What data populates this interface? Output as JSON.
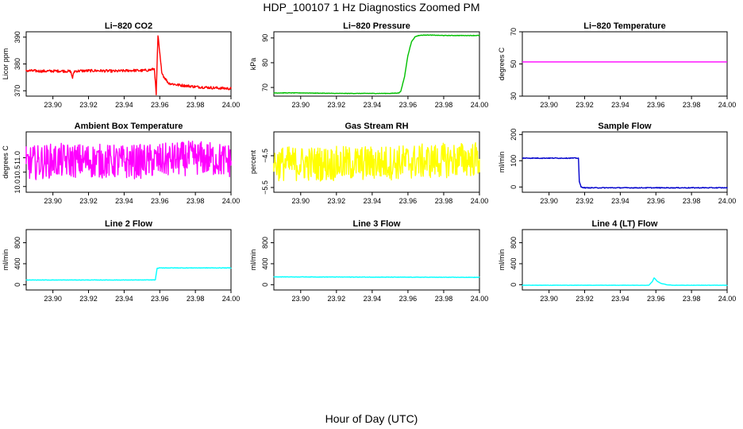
{
  "title": "HDP_100107  1 Hz Diagnostics Zoomed PM",
  "x_axis_title": "Hour of Day (UTC)",
  "chart_data": [
    {
      "type": "line",
      "title": "Li−820 CO2",
      "ylabel": "Licor ppm",
      "color": "#ff0000",
      "xlim": [
        23.885,
        24.0
      ],
      "ylim": [
        368,
        392
      ],
      "xticks": [
        "23.90",
        "23.92",
        "23.94",
        "23.96",
        "23.98",
        "24.00"
      ],
      "yticks": [
        "370",
        "380",
        "390"
      ],
      "series": [
        {
          "x": [
            23.885,
            23.895,
            23.905,
            23.91,
            23.911,
            23.912,
            23.915,
            23.925,
            23.935,
            23.945,
            23.95,
            23.955,
            23.957,
            23.958,
            23.959,
            23.96,
            23.961,
            23.962,
            23.965,
            23.97,
            23.98,
            23.99,
            24.0
          ],
          "y": [
            377.5,
            377.3,
            377.4,
            377.2,
            374.8,
            377.3,
            377.4,
            377.5,
            377.3,
            377.6,
            377.5,
            377.8,
            378.2,
            368.5,
            390.5,
            384.0,
            377.5,
            375.5,
            372.8,
            372.2,
            371.5,
            371.1,
            370.8
          ],
          "noise": 0.5
        }
      ]
    },
    {
      "type": "line",
      "title": "Li−820 Pressure",
      "ylabel": "kPa",
      "color": "#00c000",
      "xlim": [
        23.885,
        24.0
      ],
      "ylim": [
        66.5,
        92.5
      ],
      "xticks": [
        "23.90",
        "23.92",
        "23.94",
        "23.96",
        "23.98",
        "24.00"
      ],
      "yticks": [
        "70",
        "80",
        "90"
      ],
      "series": [
        {
          "x": [
            23.885,
            23.9,
            23.92,
            23.94,
            23.95,
            23.955,
            23.956,
            23.958,
            23.96,
            23.962,
            23.964,
            23.966,
            23.97,
            23.98,
            23.99,
            24.0
          ],
          "y": [
            67.8,
            67.8,
            67.6,
            67.6,
            67.6,
            67.8,
            68.5,
            74.0,
            83.0,
            88.5,
            90.5,
            91.0,
            91.2,
            91.0,
            91.0,
            91.0
          ],
          "noise": 0.1
        }
      ]
    },
    {
      "type": "line",
      "title": "Li−820 Temperature",
      "ylabel": "degrees C",
      "color": "#ff00ff",
      "xlim": [
        23.885,
        24.0
      ],
      "ylim": [
        30,
        70
      ],
      "xticks": [
        "23.90",
        "23.92",
        "23.94",
        "23.96",
        "23.98",
        "24.00"
      ],
      "yticks": [
        "30",
        "50",
        "70"
      ],
      "series": [
        {
          "x": [
            23.885,
            24.0
          ],
          "y": [
            51.3,
            51.3
          ],
          "noise": 0
        }
      ]
    },
    {
      "type": "line",
      "title": "Ambient Box Temperature",
      "ylabel": "degrees C",
      "color": "#ff00ff",
      "xlim": [
        23.885,
        24.0
      ],
      "ylim": [
        9.8,
        11.9
      ],
      "xticks": [
        "23.90",
        "23.92",
        "23.94",
        "23.96",
        "23.98",
        "24.00"
      ],
      "yticks": [
        "10.0",
        "10.5",
        "11.0"
      ],
      "series": [
        {
          "x": [
            23.885,
            23.9,
            23.92,
            23.94,
            23.96,
            23.98,
            24.0
          ],
          "y": [
            10.8,
            10.9,
            10.9,
            10.85,
            10.9,
            11.0,
            10.9
          ],
          "noise": 0.6
        }
      ]
    },
    {
      "type": "line",
      "title": "Gas Stream RH",
      "ylabel": "percent",
      "color": "#ffff00",
      "xlim": [
        23.885,
        24.0
      ],
      "ylim": [
        -5.65,
        -3.75
      ],
      "xticks": [
        "23.90",
        "23.92",
        "23.94",
        "23.96",
        "23.98",
        "24.00"
      ],
      "yticks": [
        "−5.5",
        "−4.5"
      ],
      "series": [
        {
          "x": [
            23.885,
            23.92,
            23.95,
            23.98,
            24.0
          ],
          "y": [
            -4.75,
            -4.75,
            -4.72,
            -4.65,
            -4.6
          ],
          "noise": 0.55
        }
      ]
    },
    {
      "type": "line",
      "title": "Sample Flow",
      "ylabel": "ml/min",
      "color": "#0000cc",
      "xlim": [
        23.885,
        24.0
      ],
      "ylim": [
        -20,
        210
      ],
      "xticks": [
        "23.90",
        "23.92",
        "23.94",
        "23.96",
        "23.98",
        "24.00"
      ],
      "yticks": [
        "0",
        "100",
        "200"
      ],
      "series": [
        {
          "x": [
            23.885,
            23.9,
            23.91,
            23.9165,
            23.917,
            23.918,
            23.92,
            23.94,
            23.96,
            23.98,
            24.0
          ],
          "y": [
            110,
            110,
            110,
            110,
            20,
            0,
            -3,
            -3,
            -3,
            -3,
            -3
          ],
          "noise": 1.5
        }
      ]
    },
    {
      "type": "line",
      "title": "Line 2 Flow",
      "ylabel": "ml/min",
      "color": "#00ffff",
      "xlim": [
        23.885,
        24.0
      ],
      "ylim": [
        -100,
        1050
      ],
      "xticks": [
        "23.90",
        "23.92",
        "23.94",
        "23.96",
        "23.98",
        "24.00"
      ],
      "yticks": [
        "0",
        "400",
        "800"
      ],
      "series": [
        {
          "x": [
            23.885,
            23.92,
            23.95,
            23.9575,
            23.9585,
            23.96,
            23.98,
            24.0
          ],
          "y": [
            90,
            90,
            90,
            92,
            310,
            320,
            320,
            320
          ],
          "noise": 4
        }
      ]
    },
    {
      "type": "line",
      "title": "Line 3 Flow",
      "ylabel": "ml/min",
      "color": "#00ffff",
      "xlim": [
        23.885,
        24.0
      ],
      "ylim": [
        -100,
        1050
      ],
      "xticks": [
        "23.90",
        "23.92",
        "23.94",
        "23.96",
        "23.98",
        "24.00"
      ],
      "yticks": [
        "0",
        "400",
        "800"
      ],
      "series": [
        {
          "x": [
            23.885,
            23.94,
            24.0
          ],
          "y": [
            150,
            145,
            140
          ],
          "noise": 4
        }
      ]
    },
    {
      "type": "line",
      "title": "Line 4 (LT) Flow",
      "ylabel": "ml/min",
      "color": "#00ffff",
      "xlim": [
        23.885,
        24.0
      ],
      "ylim": [
        -100,
        1050
      ],
      "xticks": [
        "23.90",
        "23.92",
        "23.94",
        "23.96",
        "23.98",
        "24.00"
      ],
      "yticks": [
        "0",
        "400",
        "800"
      ],
      "series": [
        {
          "x": [
            23.885,
            23.94,
            23.956,
            23.958,
            23.959,
            23.961,
            23.963,
            23.966,
            23.97,
            23.98,
            24.0
          ],
          "y": [
            -10,
            -10,
            -10,
            60,
            130,
            60,
            25,
            0,
            -10,
            -10,
            -10
          ],
          "noise": 3
        }
      ]
    }
  ]
}
